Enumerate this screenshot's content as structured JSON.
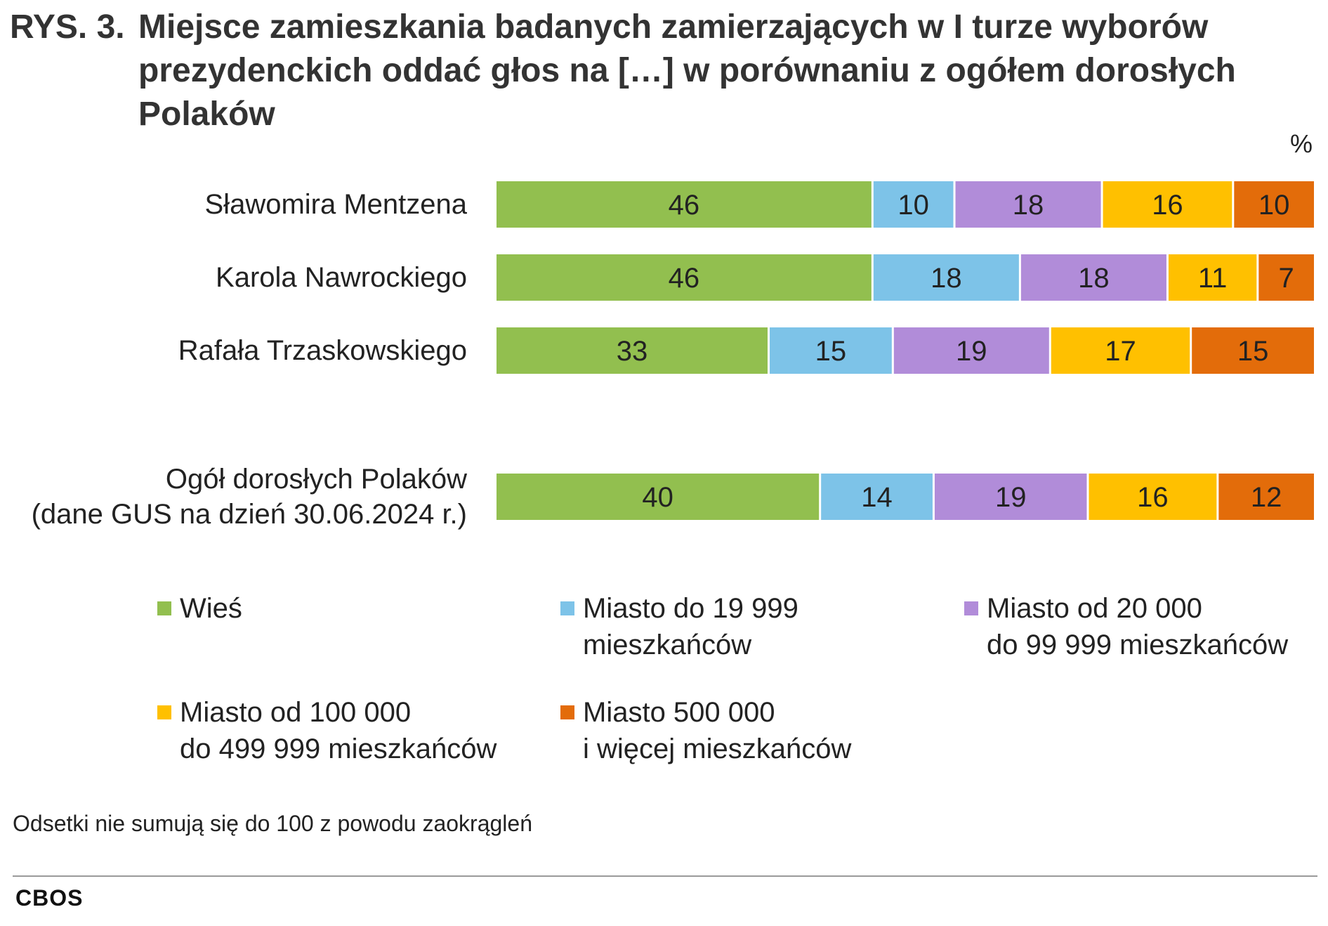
{
  "title": {
    "lead": "RYS. 3.",
    "text": "Miejsce zamieszkania badanych zamierzających w I turze wyborów prezydenckich oddać głos na […] w porównaniu z ogółem dorosłych Polaków"
  },
  "unit": "%",
  "chart_data": {
    "type": "bar",
    "orientation": "horizontal",
    "stacked": true,
    "title": "Miejsce zamieszkania badanych zamierzających w I turze wyborów prezydenckich oddać głos na […] w porównaniu z ogółem dorosłych Polaków",
    "unit": "%",
    "categories": [
      "Sławomira Mentzena",
      "Karola Nawrockiego",
      "Rafała Trzaskowskiego",
      "Ogół dorosłych Polaków\n(dane GUS na dzień 30.06.2024 r.)"
    ],
    "series": [
      {
        "name": "Wieś",
        "color": "#92bf4f",
        "values": [
          46,
          46,
          33,
          40
        ]
      },
      {
        "name": "Miasto do 19 999\nmieszkańców",
        "color": "#7dc3e8",
        "values": [
          10,
          18,
          15,
          14
        ]
      },
      {
        "name": "Miasto od 20 000\ndo 99 999 mieszkańców",
        "color": "#b18cd9",
        "values": [
          18,
          18,
          19,
          19
        ]
      },
      {
        "name": "Miasto od 100 000\ndo 499 999 mieszkańców",
        "color": "#ffc000",
        "values": [
          16,
          11,
          17,
          16
        ]
      },
      {
        "name": "Miasto 500 000\ni więcej mieszkańców",
        "color": "#e36c0a",
        "values": [
          10,
          7,
          15,
          12
        ]
      }
    ],
    "legend_position": "bottom",
    "grid": false
  },
  "note": "Odsetki nie sumują się do 100 z powodu zaokrągleń",
  "brand": "CBOS"
}
